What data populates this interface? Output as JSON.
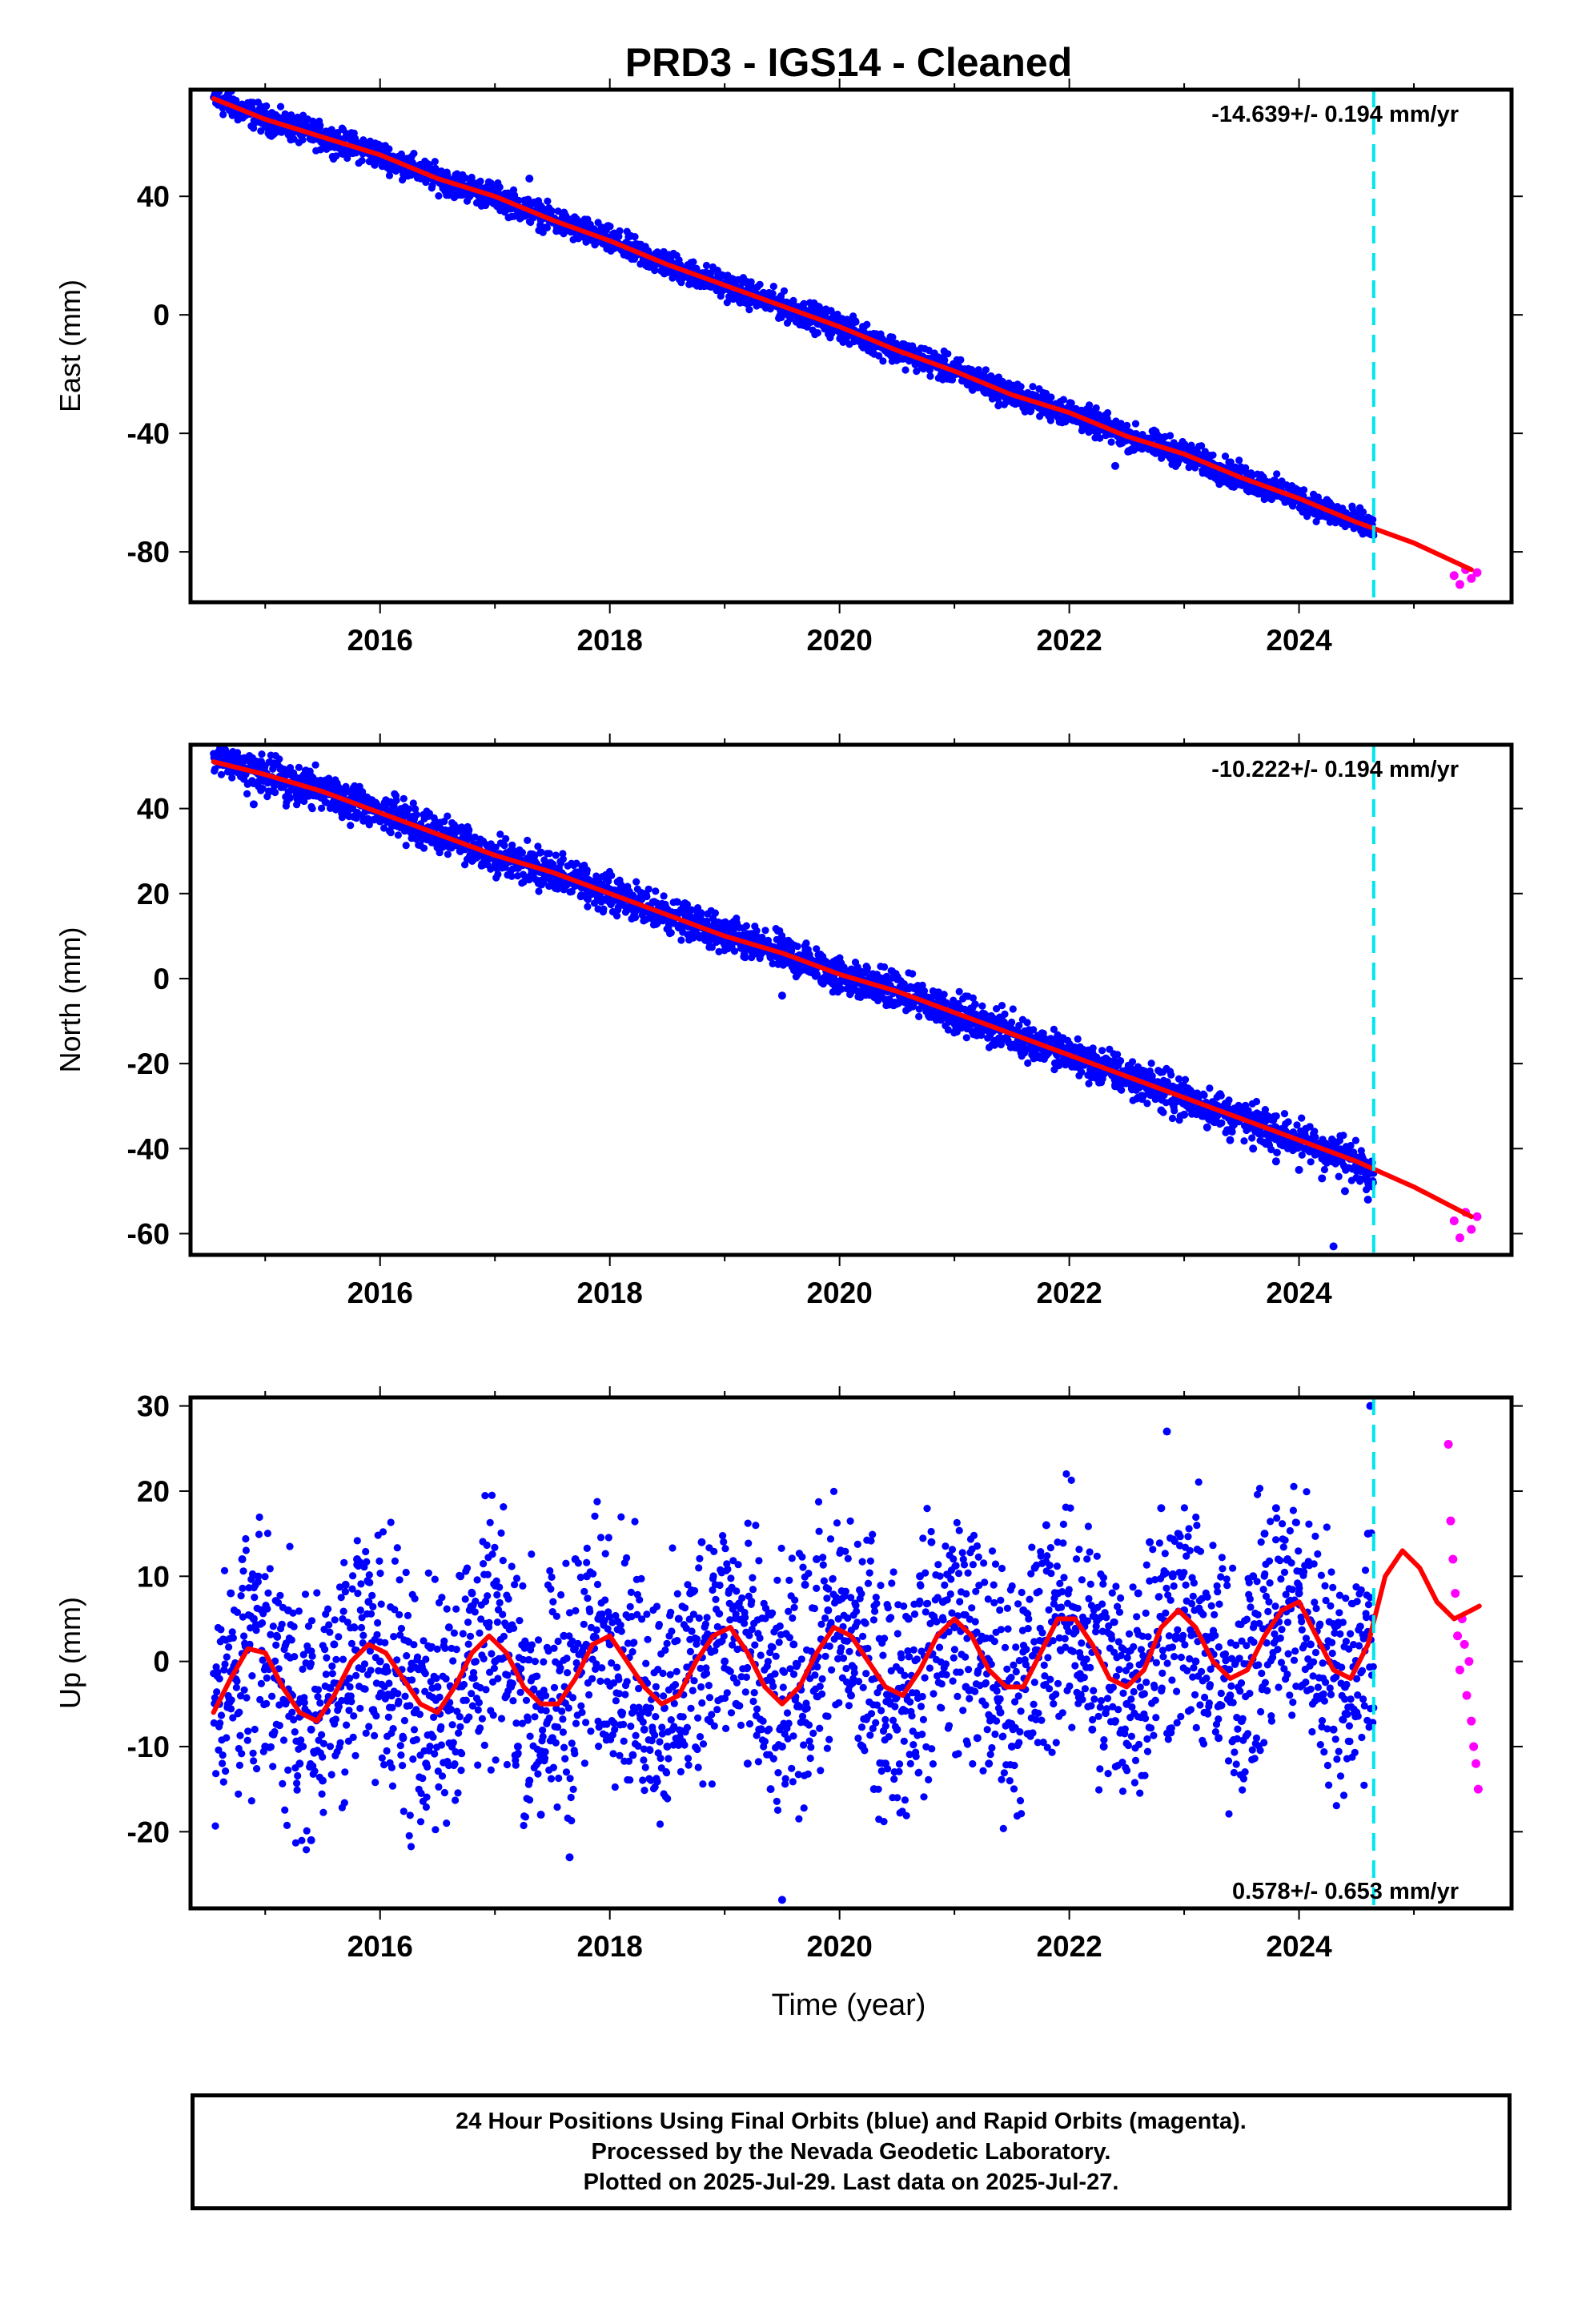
{
  "chart_data": {
    "type": "scatter",
    "title": "PRD3  - IGS14 - Cleaned",
    "xlabel": "Time (year)",
    "xlim": [
      2014.35,
      2025.85
    ],
    "x_ticks": [
      "2016",
      "2018",
      "2020",
      "2022",
      "2024"
    ],
    "x_tick_values": [
      2016,
      2018,
      2020,
      2022,
      2024
    ],
    "data_span": [
      2014.55,
      2025.57
    ],
    "final_rapid_boundary": 2024.65,
    "boundary_color": "#00e5ee",
    "grid": false,
    "legend": "none",
    "series_colors": {
      "final_orbits": "#0000ff",
      "rapid_orbits": "#ff00ff",
      "model_fit": "#ff0000"
    },
    "panels": [
      {
        "id": "east",
        "ylabel": "East (mm)",
        "ylim": [
          -97,
          76
        ],
        "y_ticks": [
          "40",
          "0",
          "-40",
          "-80"
        ],
        "y_tick_values": [
          40,
          0,
          -40,
          -80
        ],
        "rate_label": "-14.639+/- 0.194 mm/yr",
        "rate_position": "top-right",
        "fit": {
          "x": [
            2014.55,
            2015.0,
            2015.5,
            2016.0,
            2016.5,
            2017.0,
            2017.5,
            2018.0,
            2018.5,
            2019.0,
            2019.5,
            2020.0,
            2020.5,
            2021.0,
            2021.5,
            2022.0,
            2022.5,
            2023.0,
            2023.5,
            2024.0,
            2024.5,
            2025.0,
            2025.5
          ],
          "y": [
            73,
            66,
            60,
            54,
            46,
            40,
            32,
            25,
            17,
            10,
            3,
            -4,
            -12,
            -19,
            -27,
            -33,
            -41,
            -47,
            -55,
            -62,
            -70,
            -77,
            -86
          ]
        },
        "final_points": {
          "x": [
            2014.6,
            2014.8,
            2015.0,
            2015.2,
            2015.4,
            2015.6,
            2015.8,
            2016.0,
            2016.2,
            2016.4,
            2016.6,
            2016.8,
            2017.0,
            2017.2,
            2017.4,
            2017.6,
            2017.8,
            2018.0,
            2018.2,
            2018.4,
            2018.6,
            2018.8,
            2019.0,
            2019.2,
            2019.4,
            2019.6,
            2019.8,
            2020.0,
            2020.2,
            2020.4,
            2020.6,
            2020.8,
            2021.0,
            2021.2,
            2021.4,
            2021.6,
            2021.8,
            2022.0,
            2022.2,
            2022.4,
            2022.6,
            2022.8,
            2023.0,
            2023.2,
            2023.4,
            2023.6,
            2023.8,
            2024.0,
            2024.2,
            2024.4,
            2024.6,
            2017.3,
            2022.4
          ],
          "y": [
            72,
            70,
            67,
            64,
            61,
            58,
            57,
            54,
            50,
            47,
            44,
            41,
            39,
            35,
            32,
            31,
            28,
            25,
            21,
            17,
            15,
            12,
            10,
            7,
            4,
            2,
            0,
            -3,
            -6,
            -9,
            -13,
            -16,
            -19,
            -22,
            -25,
            -28,
            -31,
            -33,
            -37,
            -40,
            -43,
            -45,
            -47,
            -51,
            -55,
            -58,
            -61,
            -63,
            -67,
            -70,
            -73,
            46,
            -51
          ]
        },
        "rapid_points": {
          "x": [
            2025.35,
            2025.4,
            2025.45,
            2025.5,
            2025.55
          ],
          "y": [
            -88,
            -91,
            -86,
            -89,
            -87
          ]
        }
      },
      {
        "id": "north",
        "ylabel": "North (mm)",
        "ylim": [
          -65,
          55
        ],
        "y_ticks": [
          "40",
          "20",
          "0",
          "-20",
          "-40",
          "-60"
        ],
        "y_tick_values": [
          40,
          20,
          0,
          -20,
          -40,
          -60
        ],
        "rate_label": "-10.222+/- 0.194 mm/yr",
        "rate_position": "top-right",
        "fit": {
          "x": [
            2014.55,
            2015.0,
            2015.5,
            2016.0,
            2016.5,
            2017.0,
            2017.5,
            2018.0,
            2018.5,
            2019.0,
            2019.5,
            2020.0,
            2020.5,
            2021.0,
            2021.5,
            2022.0,
            2022.5,
            2023.0,
            2023.5,
            2024.0,
            2024.5,
            2025.0,
            2025.5
          ],
          "y": [
            51,
            48,
            44,
            39,
            34,
            29,
            25,
            20,
            15,
            10,
            6,
            1,
            -3,
            -8,
            -13,
            -18,
            -23,
            -28,
            -33,
            -38,
            -43,
            -49,
            -56
          ]
        },
        "final_points": {
          "x": [
            2014.6,
            2014.8,
            2015.0,
            2015.2,
            2015.4,
            2015.6,
            2015.8,
            2016.0,
            2016.2,
            2016.4,
            2016.6,
            2016.8,
            2017.0,
            2017.2,
            2017.4,
            2017.6,
            2017.8,
            2018.0,
            2018.2,
            2018.4,
            2018.6,
            2018.8,
            2019.0,
            2019.2,
            2019.4,
            2019.6,
            2019.8,
            2020.0,
            2020.2,
            2020.4,
            2020.6,
            2020.8,
            2021.0,
            2021.2,
            2021.4,
            2021.6,
            2021.8,
            2022.0,
            2022.2,
            2022.4,
            2022.6,
            2022.8,
            2023.0,
            2023.2,
            2023.4,
            2023.6,
            2023.8,
            2024.0,
            2024.2,
            2024.4,
            2024.6,
            2014.9,
            2019.5,
            2024.3
          ],
          "y": [
            51,
            49,
            48,
            46,
            44,
            41,
            39,
            37,
            36,
            34,
            31,
            29,
            28,
            26,
            23,
            21,
            19,
            18,
            17,
            14,
            12,
            10,
            8,
            7,
            5,
            3,
            1,
            -1,
            -3,
            -5,
            -7,
            -9,
            -10,
            -12,
            -14,
            -16,
            -18,
            -20,
            -22,
            -25,
            -28,
            -31,
            -32,
            -35,
            -38,
            -40,
            -43,
            -45,
            -47,
            -50,
            -52,
            41,
            -4,
            -63
          ]
        },
        "rapid_points": {
          "x": [
            2025.35,
            2025.4,
            2025.45,
            2025.5,
            2025.55
          ],
          "y": [
            -57,
            -61,
            -55,
            -59,
            -56
          ]
        }
      },
      {
        "id": "up",
        "ylabel": "Up (mm)",
        "ylim": [
          -29,
          31
        ],
        "y_ticks": [
          "30",
          "20",
          "10",
          "0",
          "-10",
          "-20"
        ],
        "y_tick_values": [
          30,
          20,
          10,
          0,
          -10,
          -20
        ],
        "rate_label": "0.578+/- 0.653 mm/yr",
        "rate_position": "bottom-right",
        "fit": {
          "x": [
            2014.55,
            2014.7,
            2014.85,
            2015.0,
            2015.15,
            2015.3,
            2015.45,
            2015.6,
            2015.75,
            2015.9,
            2016.05,
            2016.2,
            2016.35,
            2016.5,
            2016.65,
            2016.8,
            2016.95,
            2017.1,
            2017.25,
            2017.4,
            2017.55,
            2017.7,
            2017.85,
            2018.0,
            2018.15,
            2018.3,
            2018.45,
            2018.6,
            2018.75,
            2018.9,
            2019.05,
            2019.2,
            2019.35,
            2019.5,
            2019.65,
            2019.8,
            2019.95,
            2020.1,
            2020.25,
            2020.4,
            2020.55,
            2020.7,
            2020.85,
            2021.0,
            2021.15,
            2021.3,
            2021.45,
            2021.6,
            2021.75,
            2021.9,
            2022.05,
            2022.2,
            2022.35,
            2022.5,
            2022.65,
            2022.8,
            2022.95,
            2023.1,
            2023.25,
            2023.4,
            2023.55,
            2023.7,
            2023.85,
            2024.0,
            2024.15,
            2024.3,
            2024.45,
            2024.6,
            2024.75,
            2024.9,
            2025.05,
            2025.2,
            2025.35,
            2025.5,
            2025.57
          ],
          "y": [
            -6,
            -2,
            1.5,
            1,
            -3,
            -6,
            -7,
            -4,
            0,
            2,
            1,
            -2,
            -5,
            -6,
            -3,
            1,
            3,
            1,
            -3,
            -5,
            -5,
            -2,
            2,
            3,
            0,
            -3,
            -5,
            -4,
            0,
            3,
            4,
            1,
            -3,
            -5,
            -3,
            1,
            4,
            3,
            0,
            -3,
            -4,
            -1,
            3,
            5,
            3,
            -1,
            -3,
            -3,
            1,
            5,
            5,
            2,
            -2,
            -3,
            -1,
            4,
            6,
            4,
            0,
            -2,
            -1,
            3,
            6,
            7,
            3,
            -1,
            -2,
            2,
            10,
            13,
            11,
            7,
            5,
            6,
            6.5
          ]
        },
        "final_points": {
          "x": [
            2014.6,
            2014.7,
            2014.8,
            2014.9,
            2015.0,
            2015.1,
            2015.2,
            2015.3,
            2015.4,
            2015.5,
            2015.6,
            2015.7,
            2015.8,
            2015.9,
            2016.0,
            2016.1,
            2016.2,
            2016.3,
            2016.4,
            2016.5,
            2016.6,
            2016.7,
            2016.8,
            2016.9,
            2017.0,
            2017.1,
            2017.2,
            2017.3,
            2017.4,
            2017.5,
            2017.6,
            2017.7,
            2017.8,
            2017.9,
            2018.0,
            2018.1,
            2018.2,
            2018.3,
            2018.4,
            2018.5,
            2018.6,
            2018.7,
            2018.8,
            2018.9,
            2019.0,
            2019.1,
            2019.2,
            2019.3,
            2019.4,
            2019.5,
            2019.6,
            2019.7,
            2019.8,
            2019.9,
            2020.0,
            2020.1,
            2020.2,
            2020.3,
            2020.4,
            2020.5,
            2020.6,
            2020.7,
            2020.8,
            2020.9,
            2021.0,
            2021.1,
            2021.2,
            2021.3,
            2021.4,
            2021.5,
            2021.6,
            2021.7,
            2021.8,
            2021.9,
            2022.0,
            2022.1,
            2022.2,
            2022.3,
            2022.4,
            2022.5,
            2022.6,
            2022.7,
            2022.8,
            2022.9,
            2023.0,
            2023.1,
            2023.2,
            2023.3,
            2023.4,
            2023.5,
            2023.6,
            2023.7,
            2023.8,
            2023.9,
            2024.0,
            2024.1,
            2024.2,
            2024.3,
            2024.4,
            2024.5,
            2024.6,
            2024.62,
            2019.5,
            2022.85,
            2015.4,
            2017.65
          ],
          "y": [
            -5,
            8,
            12,
            5,
            -10,
            3,
            6,
            -12,
            -8,
            -14,
            2,
            9,
            12,
            7,
            0,
            -4,
            -9,
            -6,
            -12,
            -3,
            4,
            10,
            8,
            2,
            0,
            -4,
            -10,
            -14,
            -18,
            -9,
            3,
            12,
            10,
            5,
            2,
            -6,
            -11,
            -8,
            -4,
            -10,
            5,
            8,
            14,
            3,
            0,
            -5,
            -12,
            -8,
            -15,
            -10,
            2,
            9,
            12,
            6,
            3,
            -4,
            -10,
            -15,
            -12,
            -8,
            5,
            10,
            14,
            7,
            4,
            -3,
            -9,
            -12,
            -6,
            -10,
            6,
            11,
            16,
            8,
            5,
            -2,
            -8,
            -10,
            -7,
            -5,
            8,
            14,
            18,
            10,
            6,
            0,
            -6,
            -9,
            -4,
            -7,
            10,
            15,
            18,
            12,
            8,
            2,
            -4,
            -8,
            -3,
            -6,
            15,
            30,
            -28,
            27,
            -21,
            -23
          ]
        },
        "rapid_points": {
          "x": [
            2025.3,
            2025.32,
            2025.34,
            2025.36,
            2025.38,
            2025.4,
            2025.42,
            2025.44,
            2025.46,
            2025.48,
            2025.5,
            2025.52,
            2025.54,
            2025.56
          ],
          "y": [
            25.5,
            16.5,
            12,
            8,
            3,
            -1,
            5,
            2,
            -4,
            0,
            -7,
            -10,
            -12,
            -15
          ]
        }
      }
    ]
  },
  "footer": {
    "line1": "24 Hour Positions Using Final Orbits (blue) and Rapid Orbits (magenta).",
    "line2": "Processed by the Nevada Geodetic Laboratory.",
    "line3": "Plotted on 2025-Jul-29. Last data on 2025-Jul-27."
  }
}
